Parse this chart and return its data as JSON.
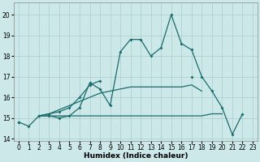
{
  "xlabel": "Humidex (Indice chaleur)",
  "bg_color": "#cde8e8",
  "grid_color": "#aacece",
  "line_color": "#1a6b6b",
  "x": [
    0,
    1,
    2,
    3,
    4,
    5,
    6,
    7,
    8,
    9,
    10,
    11,
    12,
    13,
    14,
    15,
    16,
    17,
    18,
    19,
    20,
    21,
    22,
    23
  ],
  "line1": [
    14.8,
    14.6,
    15.1,
    15.1,
    15.0,
    15.1,
    15.5,
    16.7,
    16.4,
    15.6,
    18.2,
    18.8,
    18.8,
    18.0,
    18.4,
    20.0,
    18.6,
    18.3,
    17.0,
    16.3,
    15.5,
    14.2,
    15.2,
    null
  ],
  "line2": [
    14.8,
    null,
    15.1,
    15.2,
    15.3,
    15.5,
    16.0,
    16.6,
    16.8,
    null,
    null,
    null,
    null,
    null,
    null,
    null,
    null,
    17.0,
    null,
    null,
    null,
    null,
    null,
    null
  ],
  "line3": [
    null,
    null,
    15.1,
    15.2,
    15.4,
    15.6,
    15.8,
    16.0,
    16.2,
    16.3,
    16.4,
    16.5,
    16.5,
    16.5,
    16.5,
    16.5,
    16.5,
    16.6,
    16.3,
    null,
    null,
    null,
    null,
    null
  ],
  "line4": [
    null,
    null,
    15.1,
    15.1,
    15.1,
    15.1,
    15.1,
    15.1,
    15.1,
    15.1,
    15.1,
    15.1,
    15.1,
    15.1,
    15.1,
    15.1,
    15.1,
    15.1,
    15.1,
    15.2,
    15.2,
    null,
    null,
    null
  ],
  "xlim": [
    -0.5,
    23.5
  ],
  "ylim": [
    13.9,
    20.6
  ],
  "yticks": [
    14,
    15,
    16,
    17,
    18,
    19,
    20
  ],
  "xticks": [
    0,
    1,
    2,
    3,
    4,
    5,
    6,
    7,
    8,
    9,
    10,
    11,
    12,
    13,
    14,
    15,
    16,
    17,
    18,
    19,
    20,
    21,
    22,
    23
  ]
}
